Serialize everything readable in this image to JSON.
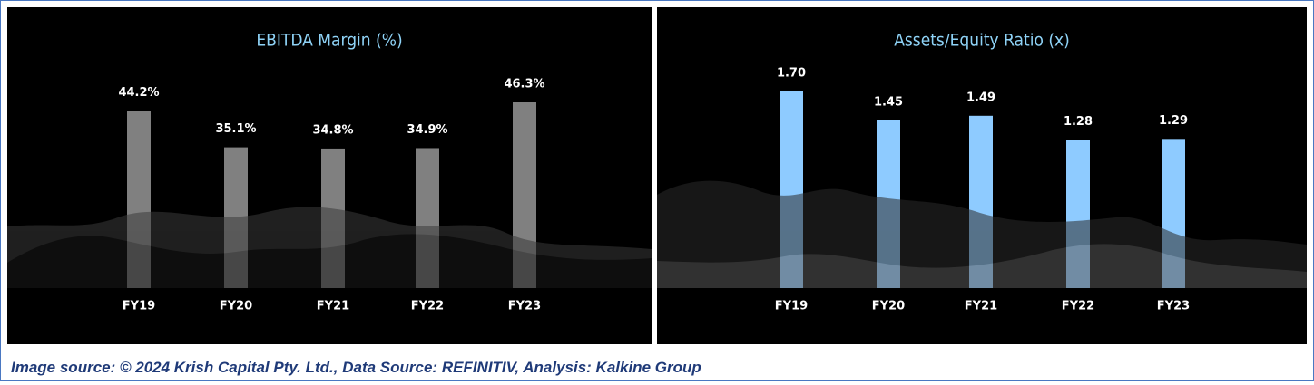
{
  "chart_data": [
    {
      "type": "bar",
      "title": "EBITDA Margin (%)",
      "categories": [
        "FY19",
        "FY20",
        "FY21",
        "FY22",
        "FY23"
      ],
      "values": [
        44.2,
        35.1,
        34.8,
        34.9,
        46.3
      ],
      "value_labels": [
        "44.2%",
        "35.1%",
        "34.8%",
        "34.9%",
        "46.3%"
      ],
      "color": "#808080"
    },
    {
      "type": "bar",
      "title": "Assets/Equity Ratio (x)",
      "categories": [
        "FY19",
        "FY20",
        "FY21",
        "FY22",
        "FY23"
      ],
      "values": [
        1.7,
        1.45,
        1.49,
        1.28,
        1.29
      ],
      "value_labels": [
        "1.70",
        "1.45",
        "1.49",
        "1.28",
        "1.29"
      ],
      "color": "#8ecbff"
    }
  ],
  "source": "Image source: © 2024 Krish Capital Pty. Ltd., Data Source: REFINITIV, Analysis: Kalkine Group"
}
